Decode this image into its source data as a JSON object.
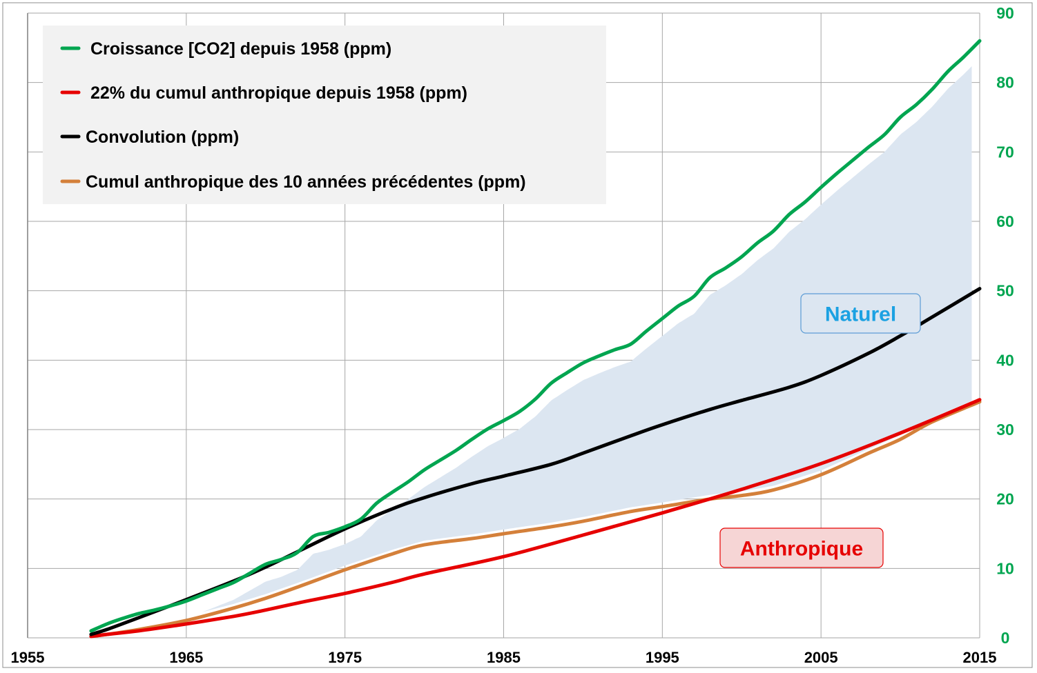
{
  "chart_data": {
    "type": "line",
    "x_axis": {
      "min": 1955,
      "max": 2015,
      "ticks": [
        1955,
        1965,
        1975,
        1985,
        1995,
        2005,
        2015
      ],
      "tick_labels": [
        "1955",
        "1965",
        "1975",
        "1985",
        "1995",
        "2005",
        "2015"
      ]
    },
    "y_axis": {
      "position": "right",
      "min": 0,
      "max": 90,
      "ticks": [
        0,
        10,
        20,
        30,
        40,
        50,
        60,
        70,
        80,
        90
      ],
      "tick_labels": [
        "0",
        "10",
        "20",
        "30",
        "40",
        "50",
        "60",
        "70",
        "80",
        "90"
      ],
      "tick_color": "#00A550"
    },
    "grid": true,
    "legend_position": "top-left",
    "series": [
      {
        "name": "Croissance [CO2] depuis 1958 (ppm)",
        "legend_label": "Croissance [CO2] depuis 1958 (ppm)",
        "color": "#00A550",
        "x": [
          1959,
          1960,
          1961,
          1962,
          1963,
          1964,
          1965,
          1966,
          1967,
          1968,
          1969,
          1970,
          1971,
          1972,
          1973,
          1974,
          1975,
          1976,
          1977,
          1978,
          1979,
          1980,
          1981,
          1982,
          1983,
          1984,
          1985,
          1986,
          1987,
          1988,
          1989,
          1990,
          1991,
          1992,
          1993,
          1994,
          1995,
          1996,
          1997,
          1998,
          1999,
          2000,
          2001,
          2002,
          2003,
          2004,
          2005,
          2006,
          2007,
          2008,
          2009,
          2010,
          2011,
          2012,
          2013,
          2014,
          2015
        ],
        "values": [
          1.0,
          2.0,
          2.8,
          3.5,
          4.0,
          4.6,
          5.3,
          6.2,
          7.1,
          8.0,
          9.3,
          10.6,
          11.3,
          12.3,
          14.6,
          15.2,
          16.0,
          17.1,
          19.4,
          21.0,
          22.5,
          24.2,
          25.6,
          27.0,
          28.6,
          30.1,
          31.3,
          32.6,
          34.4,
          36.7,
          38.2,
          39.6,
          40.6,
          41.5,
          42.3,
          44.2,
          46.0,
          47.8,
          49.2,
          51.9,
          53.3,
          54.9,
          56.9,
          58.6,
          61.0,
          62.8,
          64.9,
          66.9,
          68.8,
          70.7,
          72.5,
          75.0,
          76.8,
          79.0,
          81.6,
          83.7,
          86.0
        ]
      },
      {
        "name": "22%  du cumul anthropique depuis 1958 (ppm)",
        "legend_label": "22%  du cumul anthropique depuis 1958 (ppm)",
        "color": "#E60000",
        "x": [
          1959,
          1960,
          1962,
          1965,
          1968,
          1970,
          1972,
          1975,
          1978,
          1980,
          1985,
          1990,
          1995,
          2000,
          2005,
          2010,
          2015
        ],
        "values": [
          0.2,
          0.5,
          1.0,
          2.0,
          3.1,
          4.0,
          5.0,
          6.4,
          8.0,
          9.2,
          11.7,
          14.8,
          18.0,
          21.4,
          25.1,
          29.5,
          34.3
        ]
      },
      {
        "name": "Convolution (ppm)",
        "legend_label": "Convolution (ppm)",
        "color": "#000000",
        "x": [
          1959,
          1960,
          1962,
          1965,
          1968,
          1970,
          1972,
          1975,
          1978,
          1980,
          1983,
          1985,
          1988,
          1990,
          1993,
          1995,
          1998,
          2000,
          2003,
          2005,
          2008,
          2010,
          2012,
          2015
        ],
        "values": [
          0.5,
          1.2,
          2.9,
          5.5,
          8.2,
          10.2,
          12.4,
          15.7,
          18.6,
          20.2,
          22.2,
          23.3,
          25.0,
          26.6,
          29.1,
          30.7,
          32.9,
          34.2,
          36.1,
          37.8,
          41.0,
          43.5,
          46.2,
          50.3
        ]
      },
      {
        "name": "Cumul anthropique des 10 années précédentes (ppm)",
        "legend_label": "Cumul anthropique des 10 années précédentes (ppm)",
        "color": "#D4803A",
        "x": [
          1959,
          1960,
          1962,
          1965,
          1968,
          1970,
          1972,
          1975,
          1978,
          1980,
          1983,
          1985,
          1988,
          1990,
          1993,
          1995,
          1998,
          2000,
          2002,
          2005,
          2008,
          2010,
          2012,
          2015
        ],
        "values": [
          0.2,
          0.5,
          1.2,
          2.5,
          4.3,
          5.7,
          7.3,
          9.8,
          12.1,
          13.4,
          14.3,
          15.0,
          16.0,
          16.8,
          18.2,
          18.9,
          20.0,
          20.5,
          21.3,
          23.5,
          26.6,
          28.6,
          31.1,
          34.0
        ]
      }
    ],
    "areas": [
      {
        "label": "Naturel",
        "color": "#DCE6F1",
        "between": [
          "Croissance [CO2] depuis 1958 (ppm)",
          "Cumul anthropique des 10 années précédentes (ppm)"
        ]
      }
    ],
    "annotations": [
      {
        "text": "Naturel",
        "x": 2004,
        "y": 46.5,
        "color": "#1BA1E2",
        "box_fill": "#DCE6F1",
        "box_stroke": "#5B9BD5"
      },
      {
        "text": "Anthropique",
        "x": 2001,
        "y": 13,
        "color": "#E60000",
        "box_fill": "#F6D5D5",
        "box_stroke": "#E60000"
      }
    ]
  }
}
